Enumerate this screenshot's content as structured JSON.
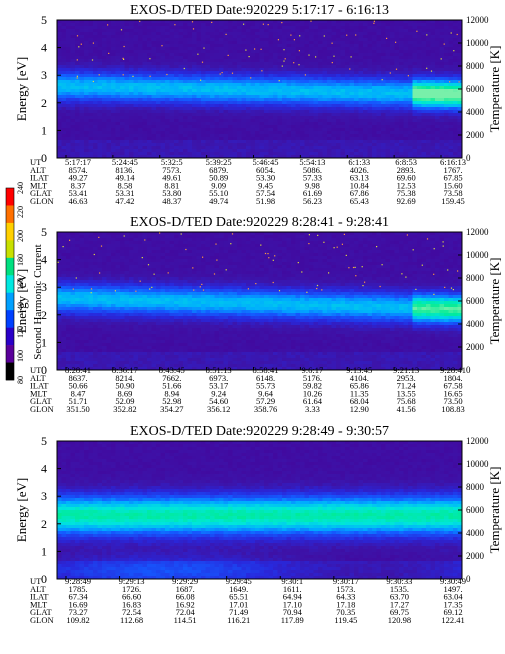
{
  "colorbar": {
    "label": "Second Harmonic Current",
    "ticks": [
      "80",
      "100",
      "120",
      "140",
      "160",
      "180",
      "200",
      "220",
      "240"
    ],
    "colors": [
      "#000000",
      "#5a009a",
      "#2a00c8",
      "#0040ff",
      "#00a0ff",
      "#00e8e0",
      "#00e080",
      "#c8e000",
      "#ffd000",
      "#ff7000",
      "#ff0000"
    ]
  },
  "chart_data": [
    {
      "type": "heatmap",
      "title": "EXOS-D/TED   Date:920229  5:17:17 - 6:16:13",
      "ylabel": "Energy [eV]",
      "y2label": "Temperature [K]",
      "ylim": [
        0,
        5
      ],
      "y2lim": [
        0,
        12000
      ],
      "yticks": [
        "0",
        "1",
        "2",
        "3",
        "4",
        "5"
      ],
      "y2ticks": [
        "0",
        "2000",
        "4000",
        "6000",
        "8000",
        "10000",
        "12000"
      ],
      "band": {
        "center_start": 2.6,
        "center_end": 2.3,
        "width": 0.85,
        "intensity": 0.55,
        "late_bright": 0.9
      },
      "rows": [
        {
          "name": "UT",
          "values": [
            "5:17:17",
            "5:24:45",
            "5:32:5",
            "5:39:25",
            "5:46:45",
            "5:54:13",
            "6:1:33",
            "6:8:53",
            "6:16:13"
          ]
        },
        {
          "name": "ALT",
          "values": [
            "8574.",
            "8136.",
            "7573.",
            "6879.",
            "6054.",
            "5086.",
            "4026.",
            "2893.",
            "1767."
          ]
        },
        {
          "name": "ILAT",
          "values": [
            "49.27",
            "49.14",
            "49.61",
            "50.89",
            "53.30",
            "57.33",
            "63.13",
            "69.60",
            "67.85"
          ]
        },
        {
          "name": "MLT",
          "values": [
            "8.37",
            "8.58",
            "8.81",
            "9.09",
            "9.45",
            "9.98",
            "10.84",
            "12.53",
            "15.60"
          ]
        },
        {
          "name": "GLAT",
          "values": [
            "53.41",
            "53.31",
            "53.80",
            "55.10",
            "57.54",
            "61.69",
            "67.86",
            "75.38",
            "73.58"
          ]
        },
        {
          "name": "GLON",
          "values": [
            "46.63",
            "47.42",
            "48.37",
            "49.74",
            "51.98",
            "56.23",
            "65.43",
            "92.69",
            "159.45"
          ]
        }
      ]
    },
    {
      "type": "heatmap",
      "title": "EXOS-D/TED   Date:920229  8:28:41 - 9:28:41",
      "ylabel": "Energy [eV]",
      "y2label": "Temperature [K]",
      "ylim": [
        0,
        5
      ],
      "y2lim": [
        0,
        12000
      ],
      "yticks": [
        "0",
        "1",
        "2",
        "3",
        "4",
        "5"
      ],
      "y2ticks": [
        "0",
        "2000",
        "4000",
        "6000",
        "8000",
        "10000",
        "12000"
      ],
      "band": {
        "center_start": 2.6,
        "center_end": 2.2,
        "width": 0.85,
        "intensity": 0.55,
        "late_bright": 0.8
      },
      "rows": [
        {
          "name": "UT",
          "values": [
            "8:28:41",
            "8:36:17",
            "8:43:45",
            "8:51:13",
            "8:58:41",
            "9:6:17",
            "9:13:45",
            "9:21:13",
            "9:28:41"
          ]
        },
        {
          "name": "ALT",
          "values": [
            "8637.",
            "8214.",
            "7662.",
            "6973.",
            "6148.",
            "5176.",
            "4104.",
            "2953.",
            "1804."
          ]
        },
        {
          "name": "ILAT",
          "values": [
            "50.66",
            "50.90",
            "51.66",
            "53.17",
            "55.73",
            "59.82",
            "65.86",
            "71.24",
            "67.58"
          ]
        },
        {
          "name": "MLT",
          "values": [
            "8.47",
            "8.69",
            "8.94",
            "9.24",
            "9.64",
            "10.26",
            "11.35",
            "13.55",
            "16.65"
          ]
        },
        {
          "name": "GLAT",
          "values": [
            "51.71",
            "52.09",
            "52.98",
            "54.60",
            "57.29",
            "61.64",
            "68.04",
            "75.68",
            "73.50"
          ]
        },
        {
          "name": "GLON",
          "values": [
            "351.50",
            "352.82",
            "354.27",
            "356.12",
            "358.76",
            "3.33",
            "12.90",
            "41.56",
            "108.83"
          ]
        }
      ]
    },
    {
      "type": "heatmap",
      "title": "EXOS-D/TED   Date:920229  9:28:49 - 9:30:57",
      "ylabel": "Energy [eV]",
      "y2label": "Temperature [K]",
      "ylim": [
        0,
        5
      ],
      "y2lim": [
        0,
        12000
      ],
      "yticks": [
        "0",
        "1",
        "2",
        "3",
        "4",
        "5"
      ],
      "y2ticks": [
        "0",
        "2000",
        "4000",
        "6000",
        "8000",
        "10000",
        "12000"
      ],
      "band": {
        "center_start": 2.3,
        "center_end": 2.3,
        "width": 1.1,
        "intensity": 0.75,
        "late_bright": 0.75
      },
      "rows": [
        {
          "name": "UT",
          "values": [
            "9:28:49",
            "9:29:13",
            "9:29:29",
            "9:29:45",
            "9:30:1",
            "9:30:17",
            "9:30:33",
            "9:30:49"
          ]
        },
        {
          "name": "ALT",
          "values": [
            "1785.",
            "1726.",
            "1687.",
            "1649.",
            "1611.",
            "1573.",
            "1535.",
            "1497."
          ]
        },
        {
          "name": "ILAT",
          "values": [
            "67.34",
            "66.60",
            "66.08",
            "65.51",
            "64.94",
            "64.33",
            "63.70",
            "63.04"
          ]
        },
        {
          "name": "MLT",
          "values": [
            "16.69",
            "16.83",
            "16.92",
            "17.01",
            "17.10",
            "17.18",
            "17.27",
            "17.35"
          ]
        },
        {
          "name": "GLAT",
          "values": [
            "73.27",
            "72.54",
            "72.04",
            "71.49",
            "70.94",
            "70.35",
            "69.75",
            "69.12"
          ]
        },
        {
          "name": "GLON",
          "values": [
            "109.82",
            "112.68",
            "114.51",
            "116.21",
            "117.89",
            "119.45",
            "120.98",
            "122.41"
          ]
        }
      ]
    }
  ]
}
